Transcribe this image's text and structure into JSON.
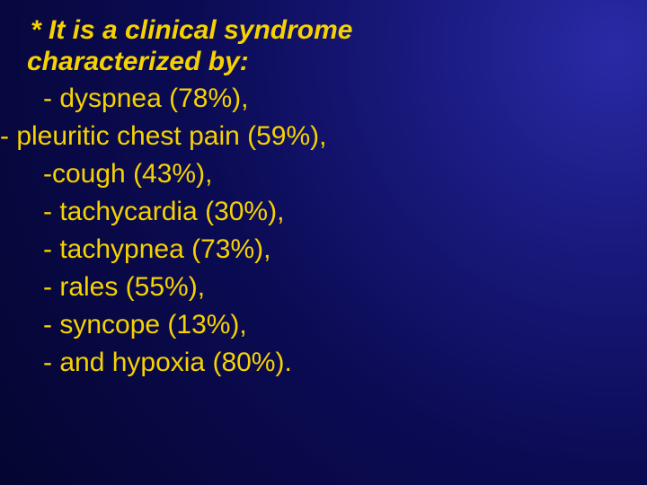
{
  "slide": {
    "background_gradient": {
      "direction": "circular-top-right",
      "colors": [
        "#2a2aa6",
        "#1a1a80",
        "#0b0b55",
        "#050530"
      ]
    },
    "text_color": "#f6d200",
    "heading": {
      "line1": "* It is a clinical syndrome",
      "line2": "characterized by:",
      "font_weight": 700,
      "font_style": "italic",
      "font_size_pt": 22
    },
    "items": [
      {
        "text": "- dyspnea (78%),",
        "indent": "normal"
      },
      {
        "text": "- pleuritic chest pain (59%),",
        "indent": "outdent"
      },
      {
        "text": "-cough (43%),",
        "indent": "normal"
      },
      {
        "text": "- tachycardia (30%),",
        "indent": "normal"
      },
      {
        "text": "- tachypnea (73%),",
        "indent": "normal"
      },
      {
        "text": "- rales (55%),",
        "indent": "normal"
      },
      {
        "text": "- syncope (13%),",
        "indent": "normal"
      },
      {
        "text": "- and hypoxia (80%).",
        "indent": "normal"
      }
    ],
    "body_font_size_pt": 22
  }
}
